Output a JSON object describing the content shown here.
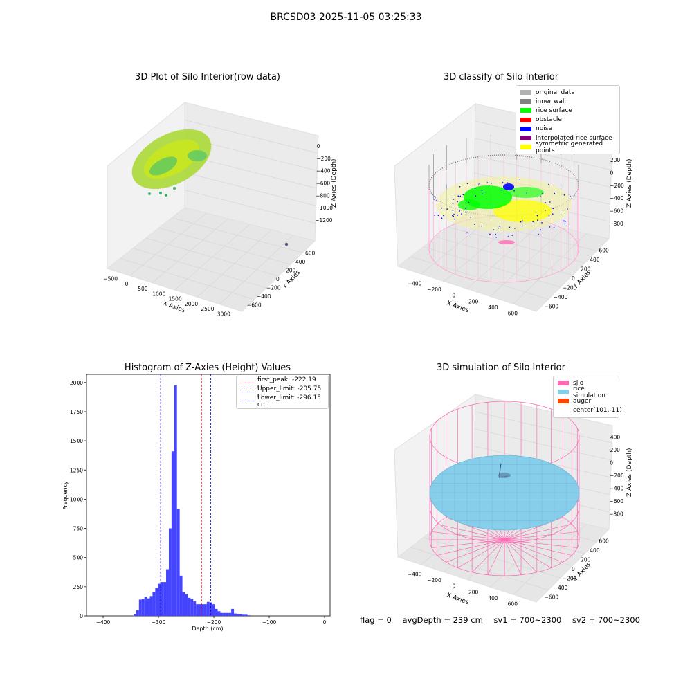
{
  "suptitle": "BRCSD03 2025-11-05 03:25:33",
  "panels": {
    "raw": {
      "title": "3D Plot of Silo Interior(row data)",
      "xlabel": "X Axies",
      "ylabel": "Y Axies",
      "zlabel": "Z Axies (Depth)",
      "xticks": [
        "−500",
        "0",
        "500",
        "1000",
        "1500",
        "2000",
        "2500",
        "3000"
      ],
      "yticks": [
        "600",
        "400",
        "200",
        "0",
        "−200",
        "−400",
        "−600"
      ],
      "zticks": [
        "0",
        "−200",
        "−400",
        "−600",
        "−800",
        "−1000",
        "−1200"
      ]
    },
    "classify": {
      "title": "3D classify of Silo Interior",
      "xlabel": "X Axies",
      "ylabel": "Y Axies",
      "zlabel": "Z Axies (Depth)",
      "xticks": [
        "−400",
        "−200",
        "0",
        "200",
        "400",
        "600"
      ],
      "yticks": [
        "600",
        "400",
        "200",
        "0",
        "−200",
        "−400",
        "−600"
      ],
      "zticks": [
        "200",
        "0",
        "−200",
        "−400",
        "−600",
        "−800"
      ],
      "legend": [
        {
          "label": "original data",
          "color": "#b0b0b0"
        },
        {
          "label": "inner wall",
          "color": "#808080"
        },
        {
          "label": "rice surface",
          "color": "#00ff00"
        },
        {
          "label": "obstacle",
          "color": "#ff0000"
        },
        {
          "label": "noise",
          "color": "#0000ff"
        },
        {
          "label": "interpolated rice surface",
          "color": "#800080"
        },
        {
          "label": "symmetric generated points",
          "color": "#ffff00"
        }
      ]
    },
    "histogram": {
      "title": "Histogram of Z-Axies (Height) Values",
      "xlabel": "Depth (cm)",
      "ylabel": "Frequency",
      "legend": [
        {
          "label": "first_peak: -222.19 cm",
          "color": "#ff0000"
        },
        {
          "label": "Upper_limit: -205.75 cm",
          "color": "#0000cc"
        },
        {
          "label": "Lower_limit: -296.15 cm",
          "color": "#0000cc"
        }
      ]
    },
    "simulation": {
      "title": "3D simulation of Silo Interior",
      "xlabel": "X Axies",
      "ylabel": "Y Axies",
      "zlabel": "Z Axies (Depth)",
      "xticks": [
        "−400",
        "−200",
        "0",
        "200",
        "400",
        "600"
      ],
      "yticks": [
        "600",
        "400",
        "200",
        "0",
        "−200",
        "−400",
        "−600"
      ],
      "zticks": [
        "400",
        "200",
        "0",
        "−200",
        "−400",
        "−600",
        "−800"
      ],
      "legend": [
        {
          "label": "silo",
          "color": "#ff69b4"
        },
        {
          "label": "rice simulation",
          "color": "#87ceeb"
        },
        {
          "label": "auger",
          "color": "#ff4500"
        },
        {
          "label": "center(101,-11)",
          "color": "none"
        }
      ]
    }
  },
  "status": {
    "flag": "flag = 0",
    "avg_depth": "avgDepth = 239 cm",
    "sv1": "sv1 = 700~2300",
    "sv2": "sv2 = 700~2300"
  },
  "chart_data": {
    "type": "bar",
    "title": "Histogram of Z-Axies (Height) Values",
    "xlabel": "Depth (cm)",
    "ylabel": "Frequency",
    "xlim": [
      -430,
      10
    ],
    "ylim": [
      0,
      2070
    ],
    "xticks": [
      -400,
      -300,
      -200,
      -100,
      0
    ],
    "yticks": [
      0,
      250,
      500,
      750,
      1000,
      1250,
      1500,
      1750,
      2000
    ],
    "bin_start": -345,
    "bin_width": 4.9,
    "values": [
      15,
      50,
      140,
      145,
      165,
      150,
      170,
      205,
      240,
      275,
      290,
      290,
      400,
      750,
      1410,
      1975,
      915,
      345,
      205,
      185,
      155,
      145,
      125,
      100,
      100,
      100,
      100,
      120,
      115,
      100,
      60,
      40,
      25,
      25,
      25,
      25,
      60,
      20,
      15,
      15,
      10,
      10,
      5
    ],
    "vlines": [
      {
        "label": "first_peak: -222.19 cm",
        "x": -222.19,
        "color": "#ff0000"
      },
      {
        "label": "Upper_limit: -205.75 cm",
        "x": -205.75,
        "color": "#0000cc"
      },
      {
        "label": "Lower_limit: -296.15 cm",
        "x": -296.15,
        "color": "#0000cc"
      }
    ],
    "bar_color": "#4444ff",
    "grid": false,
    "legend_position": "top-right"
  }
}
